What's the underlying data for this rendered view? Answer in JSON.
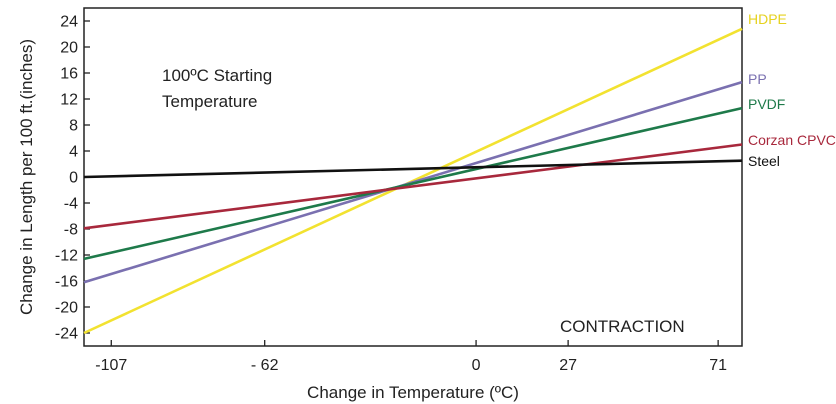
{
  "chart_data": {
    "type": "line",
    "xlabel": "Change in Temperature (ºC)",
    "ylabel": "Change in Length per 100 ft.(inches)",
    "x_ticks": [
      "-107",
      "- 62",
      "0",
      "27",
      "71"
    ],
    "y_ticks": [
      "24",
      "20",
      "16",
      "12",
      "8",
      "4",
      "0",
      "-4",
      "-8",
      "-12",
      "-16",
      "-20",
      "-24"
    ],
    "xlim": [
      -115,
      78
    ],
    "ylim": [
      -26,
      26
    ],
    "grid": false,
    "annotations": {
      "starting_temp_line1": "100ºC Starting",
      "starting_temp_line2": "Temperature",
      "contraction": "CONTRACTION"
    },
    "series": [
      {
        "name": "HDPE",
        "color": "#f2e230",
        "x": [
          -115,
          78
        ],
        "y": [
          -24,
          22.8
        ]
      },
      {
        "name": "PP",
        "color": "#7a70b0",
        "x": [
          -115,
          78
        ],
        "y": [
          -16.2,
          14.6
        ]
      },
      {
        "name": "PVDF",
        "color": "#1e7a4a",
        "x": [
          -115,
          78
        ],
        "y": [
          -12.6,
          10.6
        ]
      },
      {
        "name": "Corzan CPVC",
        "color": "#a8283c",
        "x": [
          -115,
          78
        ],
        "y": [
          -7.9,
          5.0
        ]
      },
      {
        "name": "Steel",
        "color": "#111111",
        "x": [
          -115,
          78
        ],
        "y": [
          0,
          2.5
        ]
      }
    ]
  }
}
